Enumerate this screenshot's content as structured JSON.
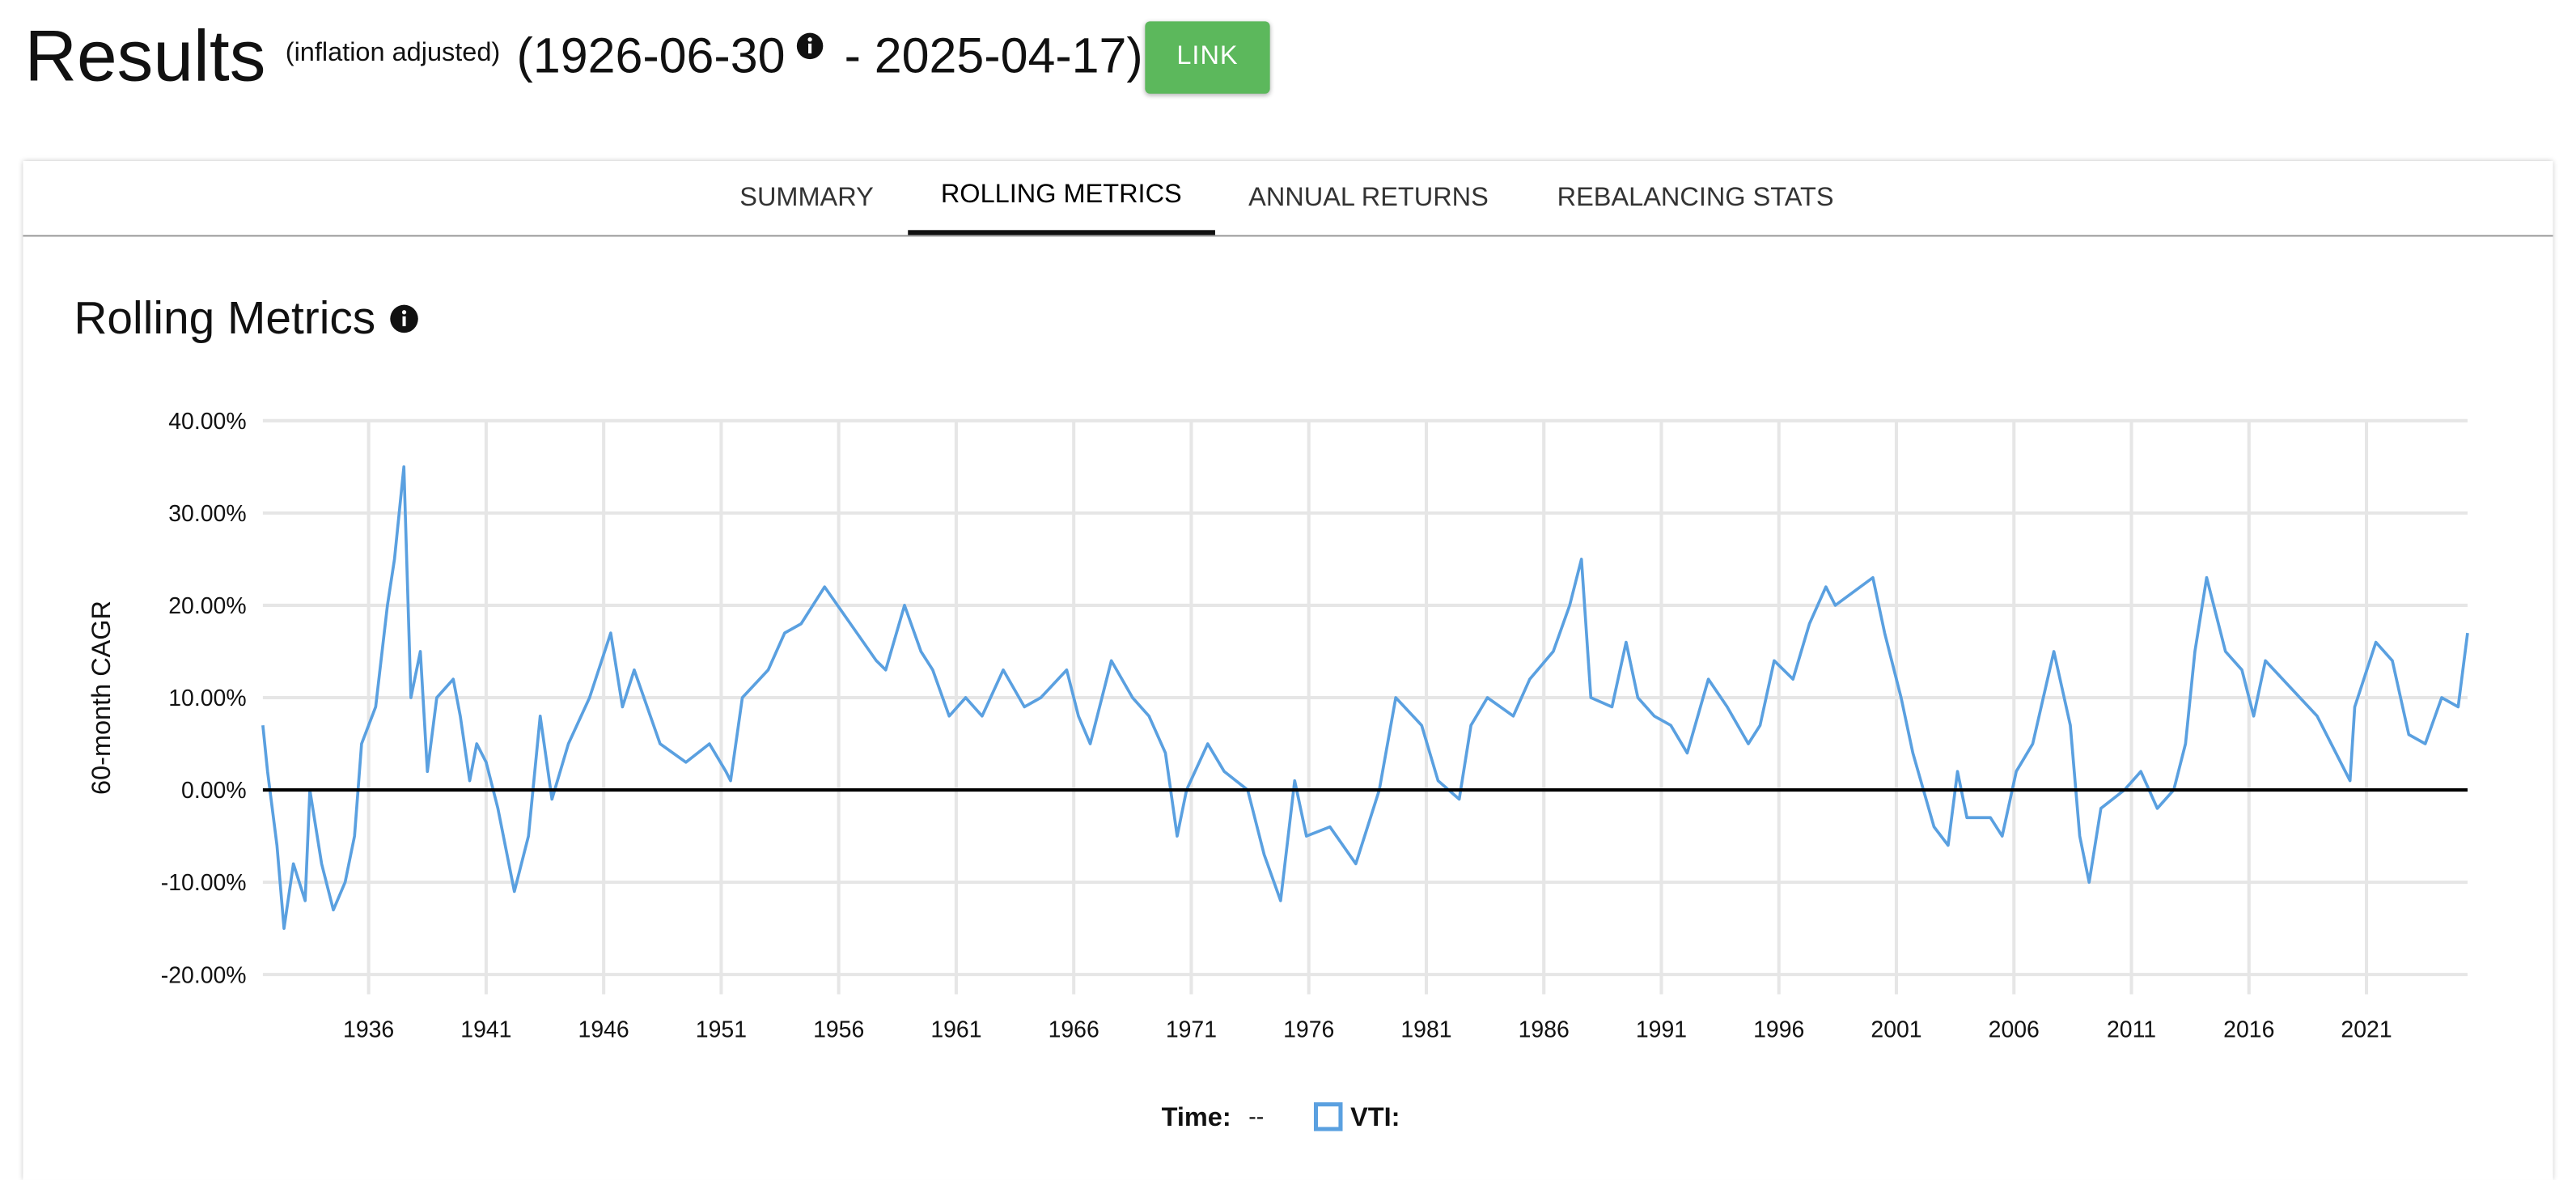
{
  "header": {
    "title": "Results",
    "note": "(inflation adjusted)",
    "start": "(1926-06-30",
    "end": "- 2025-04-17)",
    "button": "LINK"
  },
  "tabs": [
    "SUMMARY",
    "ROLLING METRICS",
    "ANNUAL RETURNS",
    "REBALANCING STATS"
  ],
  "active_tab": 1,
  "section_title": "Rolling Metrics",
  "legend": {
    "time_label": "Time:",
    "time_value": "--"
  },
  "chart_data": {
    "type": "line",
    "ylabel": "60-month CAGR",
    "grid": true,
    "xlim": [
      1931.5,
      2025.3
    ],
    "xticks": [
      1936,
      1941,
      1946,
      1951,
      1956,
      1961,
      1966,
      1971,
      1976,
      1981,
      1986,
      1991,
      1996,
      2001,
      2006,
      2011,
      2016,
      2021
    ],
    "ylim": [
      -20,
      40
    ],
    "yticks": [
      {
        "value": -20,
        "label": "-20.00%"
      },
      {
        "value": -10,
        "label": "-10.00%"
      },
      {
        "value": 0,
        "label": "0.00%"
      },
      {
        "value": 10,
        "label": "10.00%"
      },
      {
        "value": 20,
        "label": "20.00%"
      },
      {
        "value": 30,
        "label": "30.00%"
      },
      {
        "value": 40,
        "label": "40.00%"
      }
    ],
    "x": [
      1931.5,
      1931.7,
      1932.1,
      1932.4,
      1932.8,
      1933.3,
      1933.5,
      1934.0,
      1934.5,
      1935.0,
      1935.4,
      1935.7,
      1936.3,
      1936.8,
      1937.1,
      1937.5,
      1937.8,
      1938.2,
      1938.5,
      1938.9,
      1939.6,
      1939.9,
      1940.3,
      1940.6,
      1941.0,
      1941.5,
      1942.2,
      1942.8,
      1943.3,
      1943.8,
      1944.5,
      1945.4,
      1946.3,
      1946.8,
      1947.3,
      1948.4,
      1949.5,
      1950.5,
      1951.2,
      1951.4,
      1951.9,
      1953.0,
      1953.7,
      1954.4,
      1955.4,
      1956.5,
      1957.6,
      1958.0,
      1958.8,
      1959.5,
      1960.0,
      1960.7,
      1961.4,
      1962.1,
      1963.0,
      1963.9,
      1964.6,
      1965.7,
      1966.2,
      1966.7,
      1967.6,
      1968.5,
      1969.2,
      1969.9,
      1970.4,
      1970.8,
      1971.7,
      1972.4,
      1973.4,
      1974.1,
      1974.8,
      1975.4,
      1975.9,
      1976.9,
      1978.0,
      1979.0,
      1979.7,
      1980.8,
      1981.5,
      1982.4,
      1982.9,
      1983.6,
      1984.7,
      1985.4,
      1986.4,
      1987.1,
      1987.6,
      1988.0,
      1988.9,
      1989.5,
      1990.0,
      1990.7,
      1991.4,
      1992.1,
      1993.0,
      1993.8,
      1994.7,
      1995.2,
      1995.8,
      1996.6,
      1997.3,
      1998.0,
      1998.4,
      2000.0,
      2000.5,
      2001.2,
      2001.7,
      2002.6,
      2003.2,
      2003.6,
      2004.0,
      2005.0,
      2005.5,
      2006.1,
      2006.8,
      2007.7,
      2008.4,
      2008.8,
      2009.2,
      2009.7,
      2010.7,
      2011.4,
      2012.1,
      2012.8,
      2013.3,
      2013.7,
      2014.2,
      2015.0,
      2015.7,
      2016.2,
      2016.7,
      2017.8,
      2018.9,
      2020.3,
      2020.5,
      2021.4,
      2022.1,
      2022.8,
      2023.5,
      2024.2,
      2024.9,
      2025.3
    ],
    "series": [
      {
        "name": "VTI:",
        "color": "#5aa0e0",
        "values": [
          7,
          2,
          -6,
          -15,
          -8,
          -12,
          0,
          -8,
          -13,
          -10,
          -5,
          5,
          9,
          20,
          25,
          35,
          10,
          15,
          2,
          10,
          12,
          8,
          1,
          5,
          3,
          -2,
          -11,
          -5,
          8,
          -1,
          5,
          10,
          17,
          9,
          13,
          5,
          3,
          5,
          2,
          1,
          10,
          13,
          17,
          18,
          22,
          18,
          14,
          13,
          20,
          15,
          13,
          8,
          10,
          8,
          13,
          9,
          10,
          13,
          8,
          5,
          14,
          10,
          8,
          4,
          -5,
          0,
          5,
          2,
          0,
          -7,
          -12,
          1,
          -5,
          -4,
          -8,
          0,
          10,
          7,
          1,
          -1,
          7,
          10,
          8,
          12,
          15,
          20,
          25,
          10,
          9,
          16,
          10,
          8,
          7,
          4,
          12,
          9,
          5,
          7,
          14,
          12,
          18,
          22,
          20,
          23,
          17,
          10,
          4,
          -4,
          -6,
          2,
          -3,
          -3,
          -5,
          2,
          5,
          15,
          7,
          -5,
          -10,
          -2,
          0,
          2,
          -2,
          0,
          5,
          15,
          23,
          15,
          13,
          8,
          14,
          11,
          8,
          1,
          9,
          16,
          14,
          6,
          5,
          10,
          9,
          17
        ]
      }
    ]
  }
}
